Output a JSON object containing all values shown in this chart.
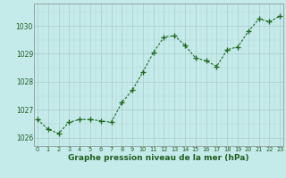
{
  "x": [
    0,
    1,
    2,
    3,
    4,
    5,
    6,
    7,
    8,
    9,
    10,
    11,
    12,
    13,
    14,
    15,
    16,
    17,
    18,
    19,
    20,
    21,
    22,
    23
  ],
  "y": [
    1026.65,
    1026.3,
    1026.15,
    1026.55,
    1026.65,
    1026.65,
    1026.6,
    1026.55,
    1027.25,
    1027.7,
    1028.35,
    1029.05,
    1029.6,
    1029.65,
    1029.3,
    1028.85,
    1028.75,
    1028.55,
    1029.15,
    1029.25,
    1029.8,
    1030.25,
    1030.15,
    1030.35
  ],
  "line_color": "#1f6b1f",
  "marker": "P",
  "marker_size": 2.5,
  "bg_color": "#c5eaea",
  "grid_color_major": "#aacaca",
  "grid_color_minor": "#c5eaea",
  "xlabel": "Graphe pression niveau de la mer (hPa)",
  "xlabel_color": "#1f5f1f",
  "ylim": [
    1025.7,
    1030.8
  ],
  "yticks": [
    1026,
    1027,
    1028,
    1029,
    1030
  ],
  "xticks": [
    0,
    1,
    2,
    3,
    4,
    5,
    6,
    7,
    8,
    9,
    10,
    11,
    12,
    13,
    14,
    15,
    16,
    17,
    18,
    19,
    20,
    21,
    22,
    23
  ]
}
